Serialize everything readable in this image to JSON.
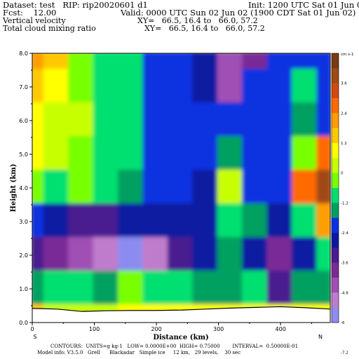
{
  "header": {
    "dataset": "Dataset: test   RIP: rip20020601 d1",
    "init": "Init: 1200 UTC Sat 01 Jun 02",
    "fcst": "Fcst:    12.00",
    "valid": "Valid: 0000 UTC Sun 02 Jun 02 (1900 CDT Sat 01 Jun 02)",
    "field1": "Vertical velocity",
    "xy1": "XY=   66.5, 16.4 to   66.0, 57.2",
    "field2": "Total cloud mixing ratio",
    "xy2": "XY=   66.5, 16.4 to   66.0, 57.2"
  },
  "footer": {
    "contours": "CONTOURS:  UNITS=g kg-1   LOW= 0.0000E+00  HIGH= 0.75000        INTERVAL=  0.50000E-01",
    "model": "Model info: V3.5.0   Grell      Blackadar   Simple ice     12 km,   29 levels,    30 sec"
  },
  "chart_data": {
    "type": "heatmap",
    "title": "Vertical velocity",
    "xlabel": "Distance (km)",
    "ylabel": "Height (km)",
    "xlim": [
      0,
      480
    ],
    "ylim": [
      0,
      8
    ],
    "x_ticks": [
      "0",
      "100",
      "200",
      "300",
      "400"
    ],
    "y_ticks": [
      "0.0",
      "1.0",
      "2.0",
      "3.0",
      "4.0",
      "5.0",
      "6.0",
      "7.0",
      "8.0"
    ],
    "x_end_labels": [
      "S",
      "N"
    ],
    "grid": false,
    "colorbar": {
      "units": "cm s-1",
      "position": "right",
      "tick_labels": [
        "3.6",
        "2.4",
        "1.2",
        "0",
        "-1.2",
        "-2.4",
        "-3.6",
        "-4.8",
        "-6",
        "-7.2"
      ],
      "colors": [
        "#7a3a12",
        "#a04a14",
        "#d24a10",
        "#ff6a00",
        "#ff9c00",
        "#ffc800",
        "#ffff00",
        "#c8ff00",
        "#78ff00",
        "#00e070",
        "#00a060",
        "#0a30e0",
        "#0a1aa0",
        "#4a1a90",
        "#7a2a96",
        "#a050b4",
        "#c07ccc",
        "#8c8cf0"
      ]
    },
    "terrain_km": [
      [
        0,
        0.42
      ],
      [
        40,
        0.4
      ],
      [
        80,
        0.33
      ],
      [
        120,
        0.35
      ],
      [
        160,
        0.36
      ],
      [
        200,
        0.36
      ],
      [
        240,
        0.37
      ],
      [
        280,
        0.4
      ],
      [
        320,
        0.43
      ],
      [
        360,
        0.45
      ],
      [
        400,
        0.47
      ],
      [
        440,
        0.44
      ],
      [
        480,
        0.4
      ]
    ],
    "grid_x_km": [
      0,
      40,
      80,
      120,
      160,
      200,
      240,
      280,
      320,
      360,
      400,
      440,
      480
    ],
    "grid_y_km": [
      8,
      7,
      6,
      5,
      4,
      3,
      2,
      1,
      0
    ],
    "field_index": [
      [
        4,
        5,
        8,
        9,
        9,
        11,
        11,
        12,
        15,
        14,
        11,
        11,
        11
      ],
      [
        5,
        6,
        8,
        9,
        9,
        11,
        11,
        12,
        15,
        11,
        11,
        9,
        11
      ],
      [
        6,
        7,
        7,
        9,
        9,
        11,
        11,
        11,
        11,
        11,
        11,
        10,
        11
      ],
      [
        6,
        7,
        8,
        9,
        9,
        11,
        11,
        11,
        10,
        11,
        11,
        8,
        3
      ],
      [
        8,
        9,
        8,
        9,
        10,
        11,
        11,
        12,
        7,
        11,
        11,
        3,
        1
      ],
      [
        11,
        12,
        13,
        13,
        12,
        12,
        12,
        12,
        9,
        10,
        12,
        9,
        4
      ],
      [
        13,
        14,
        15,
        16,
        17,
        16,
        13,
        12,
        10,
        12,
        14,
        12,
        9
      ],
      [
        10,
        9,
        9,
        10,
        8,
        9,
        9,
        10,
        10,
        9,
        13,
        10,
        10
      ],
      [
        5,
        7,
        7,
        7,
        6,
        6,
        6,
        6,
        6,
        6,
        6,
        6,
        6
      ]
    ]
  }
}
